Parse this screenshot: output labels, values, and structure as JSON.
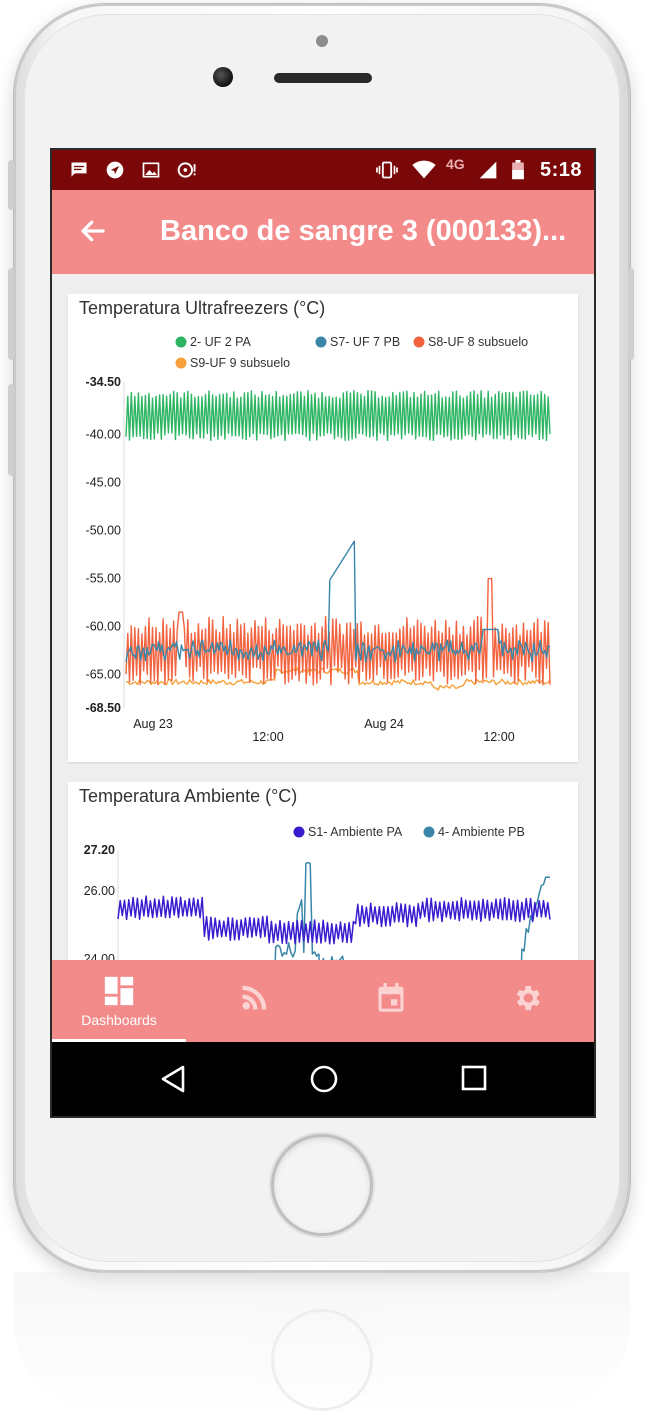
{
  "status_bar": {
    "time": "5:18",
    "network": "4G",
    "left_icons": [
      "message-icon",
      "navigation-icon",
      "image-icon",
      "disc-alert-icon"
    ],
    "right_icons": [
      "vibrate-icon",
      "wifi-icon",
      "signal-icon",
      "battery-icon"
    ]
  },
  "app_bar": {
    "title": "Banco de sangre 3 (000133)...",
    "back_icon": "arrow-left-icon",
    "color": "#f38b8b",
    "status_color": "#7a0808"
  },
  "chart_data": [
    {
      "type": "line",
      "title": "Temperatura Ultrafreezers (°C)",
      "xlabel": "",
      "ylabel": "",
      "y_ticks": [
        "-34.50",
        "-40.00",
        "-45.00",
        "-50.00",
        "-55.00",
        "-60.00",
        "-65.00",
        "-68.50"
      ],
      "ylim": [
        -68.5,
        -34.5
      ],
      "x_ticks_row1": [
        "Aug 23",
        "Aug 24"
      ],
      "x_ticks_row2": [
        "12:00",
        "12:00"
      ],
      "x_range": [
        "2017-08-23T00:00",
        "2017-08-24T20:00"
      ],
      "grid": false,
      "legend_position": "top",
      "series": [
        {
          "name": "2- UF 2 PA",
          "color": "#2db562",
          "mean": -38.0,
          "amplitude": 2.2,
          "values_note_free": null
        },
        {
          "name": "S7- UF 7 PB",
          "color": "#3a86a8",
          "mean": -62.5,
          "amplitude": 0.8,
          "peak": {
            "x": "2017-08-24T04:00",
            "y": -55.2
          }
        },
        {
          "name": "S8-UF 8 subsuelo",
          "color": "#f26340",
          "mean": -62.5,
          "amplitude": 2.6,
          "peak": {
            "x": "2017-08-24T21:00",
            "y": -55.0
          }
        },
        {
          "name": "S9-UF 9 subsuelo",
          "color": "#f7a03a",
          "mean": -65.8,
          "amplitude": 0.6
        }
      ]
    },
    {
      "type": "line",
      "title": "Temperatura Ambiente (°C)",
      "xlabel": "",
      "ylabel": "",
      "y_ticks": [
        "27.20",
        "26.00",
        "24.00"
      ],
      "ylim": [
        22.5,
        27.2
      ],
      "grid": false,
      "legend_position": "top-right",
      "series": [
        {
          "name": "S1- Ambiente PA",
          "color": "#3a1ccf",
          "mean": 25.3,
          "amplitude": 0.35
        },
        {
          "name": "4- Ambiente PB",
          "color": "#3a86a8",
          "peak_value": 27.1
        }
      ]
    }
  ],
  "bottom_nav": {
    "items": [
      {
        "label": "Dashboards",
        "icon": "dashboard-icon",
        "active": true
      },
      {
        "label": "",
        "icon": "rss-feed-icon",
        "active": false
      },
      {
        "label": "",
        "icon": "calendar-icon",
        "active": false
      },
      {
        "label": "",
        "icon": "settings-gear-icon",
        "active": false
      }
    ]
  },
  "system_nav": {
    "icons": [
      "back-triangle-icon",
      "home-circle-icon",
      "recents-square-icon"
    ]
  }
}
